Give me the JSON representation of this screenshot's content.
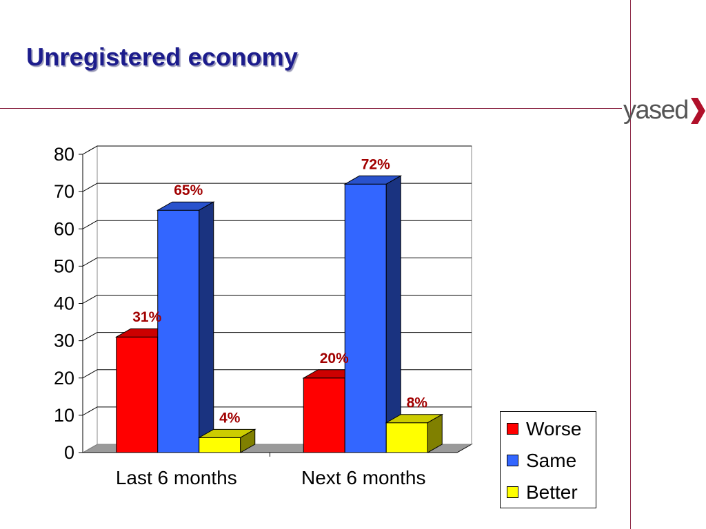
{
  "slide": {
    "title": "Unregistered economy",
    "logo_text": "yased"
  },
  "colors": {
    "title": "#1c1c8c",
    "rule": "#8f2d4a",
    "worse": "#ff0000",
    "same": "#3366ff",
    "better": "#ffff00",
    "data_label": "#a10000"
  },
  "chart_data": {
    "type": "bar",
    "style": "3d-clustered-column",
    "categories": [
      "Last 6 months",
      "Next 6 months"
    ],
    "series": [
      {
        "name": "Worse",
        "values": [
          31,
          20
        ],
        "labels": [
          "31%",
          "20%"
        ]
      },
      {
        "name": "Same",
        "values": [
          65,
          72
        ],
        "labels": [
          "65%",
          "72%"
        ]
      },
      {
        "name": "Better",
        "values": [
          4,
          8
        ],
        "labels": [
          "4%",
          "8%"
        ]
      }
    ],
    "ylim": [
      0,
      80
    ],
    "yticks": [
      "0",
      "10",
      "20",
      "30",
      "40",
      "50",
      "60",
      "70",
      "80"
    ],
    "grid": true,
    "legend_position": "right",
    "title": "",
    "xlabel": "",
    "ylabel": ""
  }
}
